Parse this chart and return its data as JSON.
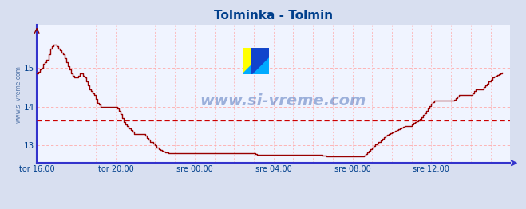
{
  "title": "Tolminka - Tolmin",
  "title_color": "#003f8c",
  "bg_color": "#d8dff0",
  "plot_bg_color": "#f0f4ff",
  "line_color": "#990000",
  "avg_line_color": "#cc0000",
  "avg_line_value": 13.65,
  "axis_color": "#3333cc",
  "grid_color_h": "#ffaaaa",
  "grid_color_v": "#ffaaaa",
  "tick_color": "#003f8c",
  "watermark": "www.si-vreme.com",
  "watermark_color": "#003399",
  "legend_color": "#cc0000",
  "ylabel_text": "www.si-vreme.com",
  "ylabel_color": "#5577aa",
  "xlim_start": 0,
  "xlim_end": 288,
  "ylim_min": 12.55,
  "ylim_max": 16.1,
  "yticks": [
    13,
    14,
    15
  ],
  "xtick_positions": [
    0,
    48,
    96,
    144,
    192,
    240
  ],
  "xtick_labels": [
    "tor 16:00",
    "tor 20:00",
    "sre 00:00",
    "sre 04:00",
    "sre 08:00",
    "sre 12:00"
  ],
  "temperature": [
    14.85,
    14.9,
    14.95,
    15.0,
    15.1,
    15.15,
    15.2,
    15.35,
    15.5,
    15.55,
    15.6,
    15.6,
    15.55,
    15.5,
    15.45,
    15.4,
    15.35,
    15.25,
    15.15,
    15.05,
    14.95,
    14.85,
    14.8,
    14.75,
    14.75,
    14.8,
    14.85,
    14.85,
    14.8,
    14.75,
    14.65,
    14.55,
    14.45,
    14.4,
    14.35,
    14.3,
    14.2,
    14.1,
    14.05,
    14.0,
    14.0,
    14.0,
    14.0,
    14.0,
    14.0,
    14.0,
    14.0,
    14.0,
    14.0,
    13.95,
    13.9,
    13.8,
    13.7,
    13.6,
    13.55,
    13.5,
    13.45,
    13.4,
    13.35,
    13.3,
    13.3,
    13.3,
    13.3,
    13.3,
    13.3,
    13.3,
    13.25,
    13.2,
    13.15,
    13.1,
    13.1,
    13.05,
    13.0,
    12.95,
    12.9,
    12.88,
    12.86,
    12.85,
    12.83,
    12.82,
    12.81,
    12.8,
    12.8,
    12.8,
    12.8,
    12.8,
    12.8,
    12.8,
    12.8,
    12.8,
    12.8,
    12.8,
    12.8,
    12.8,
    12.8,
    12.8,
    12.8,
    12.8,
    12.8,
    12.8,
    12.8,
    12.8,
    12.8,
    12.8,
    12.8,
    12.8,
    12.8,
    12.8,
    12.8,
    12.8,
    12.8,
    12.8,
    12.8,
    12.8,
    12.8,
    12.8,
    12.8,
    12.8,
    12.8,
    12.8,
    12.8,
    12.8,
    12.8,
    12.8,
    12.8,
    12.8,
    12.8,
    12.8,
    12.8,
    12.8,
    12.8,
    12.8,
    12.8,
    12.78,
    12.77,
    12.76,
    12.76,
    12.76,
    12.76,
    12.76,
    12.76,
    12.76,
    12.76,
    12.76,
    12.76,
    12.76,
    12.76,
    12.76,
    12.76,
    12.76,
    12.76,
    12.76,
    12.76,
    12.76,
    12.76,
    12.76,
    12.76,
    12.76,
    12.76,
    12.76,
    12.76,
    12.76,
    12.76,
    12.76,
    12.76,
    12.76,
    12.76,
    12.76,
    12.76,
    12.76,
    12.76,
    12.76,
    12.76,
    12.76,
    12.75,
    12.74,
    12.73,
    12.73,
    12.73,
    12.73,
    12.73,
    12.73,
    12.73,
    12.73,
    12.73,
    12.73,
    12.73,
    12.73,
    12.73,
    12.73,
    12.73,
    12.73,
    12.72,
    12.72,
    12.72,
    12.72,
    12.72,
    12.72,
    12.72,
    12.75,
    12.78,
    12.82,
    12.86,
    12.9,
    12.94,
    12.98,
    13.02,
    13.06,
    13.1,
    13.14,
    13.18,
    13.22,
    13.25,
    13.28,
    13.3,
    13.32,
    13.34,
    13.36,
    13.38,
    13.4,
    13.42,
    13.44,
    13.46,
    13.48,
    13.5,
    13.5,
    13.5,
    13.5,
    13.55,
    13.58,
    13.6,
    13.62,
    13.64,
    13.68,
    13.72,
    13.78,
    13.84,
    13.9,
    13.96,
    14.02,
    14.08,
    14.12,
    14.15,
    14.15,
    14.15,
    14.15,
    14.15,
    14.15,
    14.15,
    14.15,
    14.15,
    14.15,
    14.15,
    14.15,
    14.18,
    14.22,
    14.26,
    14.3,
    14.3,
    14.3,
    14.3,
    14.3,
    14.3,
    14.3,
    14.3,
    14.35,
    14.4,
    14.45,
    14.45,
    14.45,
    14.45,
    14.45,
    14.5,
    14.55,
    14.6,
    14.65,
    14.7,
    14.75,
    14.78,
    14.8,
    14.82,
    14.84,
    14.86,
    14.88
  ]
}
